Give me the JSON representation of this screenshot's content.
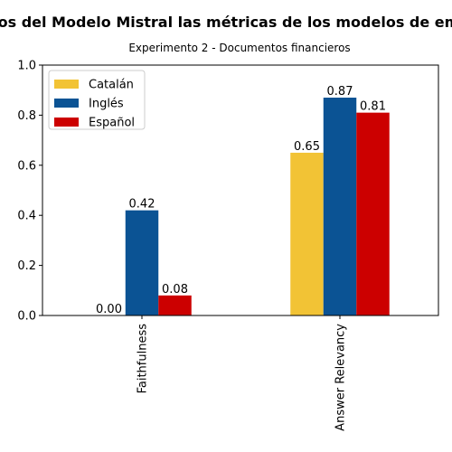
{
  "chart_data": {
    "type": "bar",
    "title": "Resultados del Modelo Mistral las métricas de los modelos de embedding",
    "subtitle": "Experimento 2 - Documentos financieros",
    "xlabel": "",
    "ylabel": "",
    "ylim": [
      0,
      1.0
    ],
    "yticks": [
      "0.0",
      "0.2",
      "0.4",
      "0.6",
      "0.8",
      "1.0"
    ],
    "categories": [
      "Faithfulness",
      "Answer Relevancy"
    ],
    "series": [
      {
        "name": "Catalán",
        "color": "#F2C335",
        "values": [
          0.0,
          0.65
        ],
        "labels": [
          "0.00",
          "0.65"
        ]
      },
      {
        "name": "Inglés",
        "color": "#0B5394",
        "values": [
          0.42,
          0.87
        ],
        "labels": [
          "0.42",
          "0.87"
        ]
      },
      {
        "name": "Español",
        "color": "#CC0000",
        "values": [
          0.08,
          0.81
        ],
        "labels": [
          "0.08",
          "0.81"
        ]
      }
    ],
    "legend": "top-left",
    "grid": false
  }
}
